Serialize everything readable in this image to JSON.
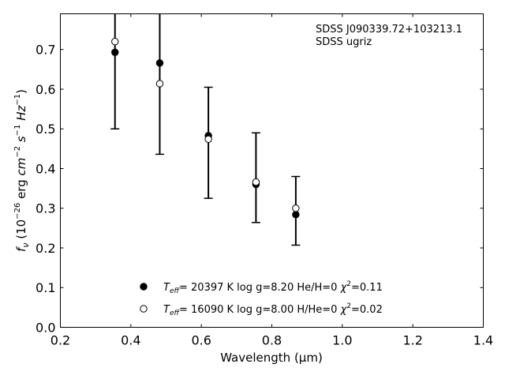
{
  "chart_data": {
    "type": "scatter",
    "xlabel": "Wavelength (μm)",
    "ylabel_parts": {
      "f": "f",
      "nu": "ν",
      "open": " (10",
      "exp1": "−26",
      "erg": " erg ",
      "cm": "cm",
      "exp2": "−2",
      "s": " s",
      "exp3": "−1",
      "hz": " Hz",
      "exp4": "−1",
      "close": ")"
    },
    "xlim": [
      0.2,
      1.4
    ],
    "ylim": [
      0.0,
      0.79
    ],
    "xticks": [
      "0.2",
      "0.4",
      "0.6",
      "0.8",
      "1.0",
      "1.2",
      "1.4"
    ],
    "yticks": [
      "0.0",
      "0.1",
      "0.2",
      "0.3",
      "0.4",
      "0.5",
      "0.6",
      "0.7"
    ],
    "annotation": [
      "SDSS J090339.72+103213.1",
      "SDSS ugriz"
    ],
    "observed": {
      "x": [
        0.355,
        0.482,
        0.62,
        0.755,
        0.868
      ],
      "err_low": [
        0.5,
        0.436,
        0.325,
        0.264,
        0.207
      ],
      "err_high": [
        0.85,
        0.85,
        0.605,
        0.49,
        0.38
      ]
    },
    "series": [
      {
        "marker": "filled",
        "x": [
          0.355,
          0.482,
          0.62,
          0.755,
          0.868
        ],
        "values": [
          0.693,
          0.666,
          0.483,
          0.36,
          0.284
        ],
        "legend": {
          "T": "T",
          "eff": "eff",
          "rest": "= 20397 K  log g=8.20  He/H=0  ",
          "chi": "χ",
          "sq": "2",
          "val": "=0.11"
        }
      },
      {
        "marker": "open",
        "x": [
          0.355,
          0.482,
          0.62,
          0.755,
          0.868
        ],
        "values": [
          0.72,
          0.614,
          0.474,
          0.366,
          0.3
        ],
        "legend": {
          "T": "T",
          "eff": "eff",
          "rest": "= 16090 K  log g=8.00  H/He=0  ",
          "chi": "χ",
          "sq": "2",
          "val": "=0.02"
        }
      }
    ]
  }
}
